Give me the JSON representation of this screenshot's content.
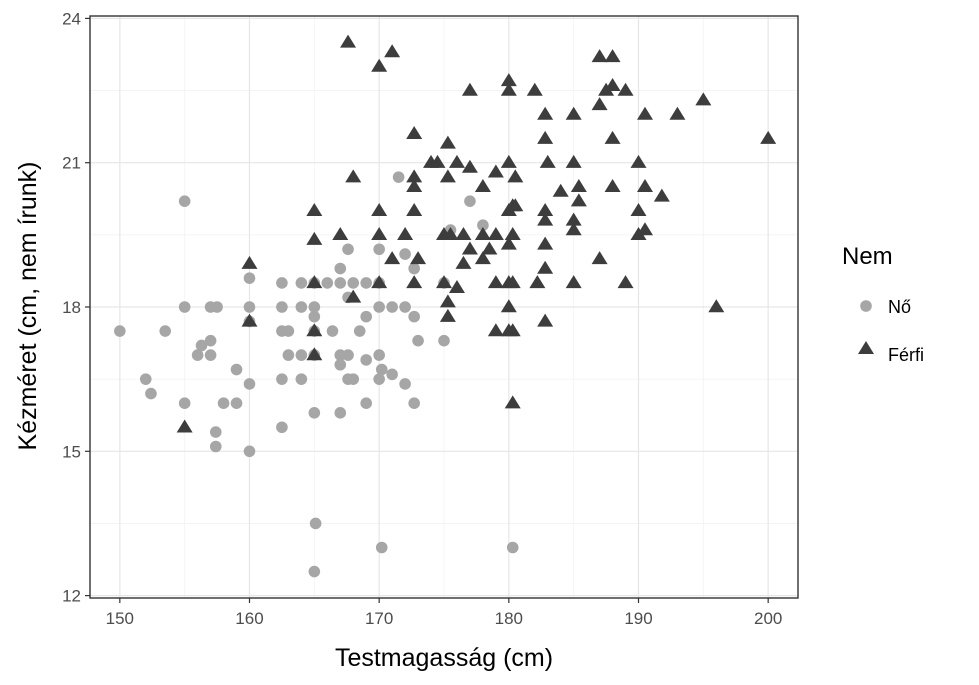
{
  "chart_data": {
    "type": "scatter",
    "title": "",
    "xlabel": "Testmagasság (cm)",
    "ylabel": "Kézméret (cm, nem írunk)",
    "xlim": [
      147.7,
      202.3
    ],
    "ylim": [
      11.95,
      24.05
    ],
    "x_ticks": [
      150,
      160,
      170,
      180,
      190,
      200
    ],
    "y_ticks": [
      12,
      15,
      18,
      21,
      24
    ],
    "grid": true,
    "legend": {
      "title": "Nem",
      "position": "right",
      "entries": [
        {
          "label": "Nő",
          "shape": "circle",
          "color": "#a6a6a6"
        },
        {
          "label": "Férfi",
          "shape": "triangle",
          "color": "#3d3d3d"
        }
      ]
    },
    "series": [
      {
        "name": "Nő",
        "shape": "circle",
        "color": "#a6a6a6",
        "points": [
          [
            150,
            17.5
          ],
          [
            152,
            16.5
          ],
          [
            152.4,
            16.2
          ],
          [
            153.5,
            17.5
          ],
          [
            155,
            20.2
          ],
          [
            155,
            18
          ],
          [
            155,
            16
          ],
          [
            156,
            17
          ],
          [
            156.3,
            17.2
          ],
          [
            157,
            18
          ],
          [
            157,
            17.3
          ],
          [
            157,
            17
          ],
          [
            157.4,
            15.4
          ],
          [
            157.4,
            15.1
          ],
          [
            157.5,
            18
          ],
          [
            158,
            16
          ],
          [
            159,
            16
          ],
          [
            159,
            16.7
          ],
          [
            160,
            18.6
          ],
          [
            160,
            18
          ],
          [
            160,
            17.7
          ],
          [
            160,
            16.4
          ],
          [
            160,
            15
          ],
          [
            162.5,
            18.5
          ],
          [
            162.5,
            18
          ],
          [
            162.5,
            17.5
          ],
          [
            162.5,
            16.5
          ],
          [
            162.5,
            15.5
          ],
          [
            163,
            17.5
          ],
          [
            163,
            17
          ],
          [
            164,
            18.5
          ],
          [
            164,
            18
          ],
          [
            164,
            17
          ],
          [
            164,
            16.5
          ],
          [
            165,
            18.5
          ],
          [
            165,
            18
          ],
          [
            165,
            17.8
          ],
          [
            165,
            17.5
          ],
          [
            165,
            17
          ],
          [
            165,
            15.8
          ],
          [
            165.1,
            13.5
          ],
          [
            165,
            12.5
          ],
          [
            166,
            18.5
          ],
          [
            166.4,
            17.5
          ],
          [
            167,
            18.8
          ],
          [
            167,
            18.5
          ],
          [
            167,
            17
          ],
          [
            167,
            16.8
          ],
          [
            167,
            15.8
          ],
          [
            167.6,
            19.2
          ],
          [
            167.6,
            18.2
          ],
          [
            167.6,
            17
          ],
          [
            167.6,
            16.5
          ],
          [
            168,
            18.5
          ],
          [
            168,
            16.5
          ],
          [
            168.5,
            17.5
          ],
          [
            169,
            18.5
          ],
          [
            169,
            17.8
          ],
          [
            169,
            16.9
          ],
          [
            169,
            16
          ],
          [
            170,
            19.2
          ],
          [
            170,
            18.5
          ],
          [
            170,
            18
          ],
          [
            170,
            17
          ],
          [
            170.2,
            16.7
          ],
          [
            170,
            16.5
          ],
          [
            170.2,
            13
          ],
          [
            171,
            18
          ],
          [
            171,
            16.6
          ],
          [
            171.5,
            20.7
          ],
          [
            172,
            19.1
          ],
          [
            172,
            18
          ],
          [
            172,
            16.4
          ],
          [
            172.7,
            18.8
          ],
          [
            172.7,
            17.8
          ],
          [
            172.7,
            16
          ],
          [
            173,
            17.3
          ],
          [
            175,
            18.5
          ],
          [
            175,
            17.3
          ],
          [
            175.5,
            19.6
          ],
          [
            177,
            20.2
          ],
          [
            178,
            19.7
          ],
          [
            180.3,
            13
          ]
        ]
      },
      {
        "name": "Férfi",
        "shape": "triangle",
        "color": "#3d3d3d",
        "points": [
          [
            155,
            15.5
          ],
          [
            160,
            18.9
          ],
          [
            160,
            17.7
          ],
          [
            165,
            20
          ],
          [
            165,
            19.4
          ],
          [
            165,
            18.5
          ],
          [
            165,
            17.5
          ],
          [
            165,
            17
          ],
          [
            167,
            19.5
          ],
          [
            167.6,
            23.5
          ],
          [
            168,
            20.7
          ],
          [
            168,
            18.2
          ],
          [
            170,
            23
          ],
          [
            170,
            20
          ],
          [
            170,
            19.5
          ],
          [
            170,
            18.5
          ],
          [
            171,
            23.3
          ],
          [
            171,
            19
          ],
          [
            172,
            19.5
          ],
          [
            172.7,
            21.6
          ],
          [
            172.7,
            20.7
          ],
          [
            172.7,
            20.5
          ],
          [
            172.7,
            20
          ],
          [
            172.7,
            18.5
          ],
          [
            173,
            19
          ],
          [
            174,
            21
          ],
          [
            174.5,
            21
          ],
          [
            175,
            19.5
          ],
          [
            175,
            18.5
          ],
          [
            175.3,
            21.4
          ],
          [
            175.3,
            20.7
          ],
          [
            175.5,
            19.5
          ],
          [
            175.3,
            18.1
          ],
          [
            175.3,
            17.8
          ],
          [
            176,
            21
          ],
          [
            176,
            18.4
          ],
          [
            176.5,
            19.5
          ],
          [
            176.5,
            18.9
          ],
          [
            177,
            22.5
          ],
          [
            177,
            20.9
          ],
          [
            177,
            19.2
          ],
          [
            178,
            20.5
          ],
          [
            178,
            19.5
          ],
          [
            178,
            19
          ],
          [
            178.5,
            19.2
          ],
          [
            179,
            20.8
          ],
          [
            179,
            19.5
          ],
          [
            179,
            18.5
          ],
          [
            179,
            17.5
          ],
          [
            180,
            22.7
          ],
          [
            180,
            22.5
          ],
          [
            180,
            21
          ],
          [
            180,
            20
          ],
          [
            180,
            19.3
          ],
          [
            180,
            18.5
          ],
          [
            180,
            18
          ],
          [
            180,
            17.5
          ],
          [
            180.3,
            20.1
          ],
          [
            180.3,
            19.5
          ],
          [
            180.3,
            18.5
          ],
          [
            180.3,
            17.5
          ],
          [
            180.3,
            16
          ],
          [
            180.5,
            20.7
          ],
          [
            180.5,
            20.1
          ],
          [
            182,
            22.5
          ],
          [
            182.2,
            18.5
          ],
          [
            182.8,
            22
          ],
          [
            182.8,
            21.5
          ],
          [
            182.8,
            20
          ],
          [
            182.8,
            19.8
          ],
          [
            182.8,
            19.3
          ],
          [
            182.8,
            18.8
          ],
          [
            182.8,
            17.7
          ],
          [
            183,
            21
          ],
          [
            184,
            20.4
          ],
          [
            185,
            22
          ],
          [
            185,
            21
          ],
          [
            185,
            19.8
          ],
          [
            185,
            19.6
          ],
          [
            185,
            18.5
          ],
          [
            185.4,
            20.5
          ],
          [
            185.4,
            20.2
          ],
          [
            187,
            23.2
          ],
          [
            187,
            22.2
          ],
          [
            187,
            19
          ],
          [
            187.5,
            22.5
          ],
          [
            188,
            23.2
          ],
          [
            188,
            22.6
          ],
          [
            188,
            21.5
          ],
          [
            188,
            20.5
          ],
          [
            189,
            22.5
          ],
          [
            189,
            18.5
          ],
          [
            190,
            21
          ],
          [
            190,
            20
          ],
          [
            190,
            19.5
          ],
          [
            190.5,
            22
          ],
          [
            190.5,
            20.5
          ],
          [
            190.5,
            19.6
          ],
          [
            191.8,
            20.3
          ],
          [
            193,
            22
          ],
          [
            195,
            22.3
          ],
          [
            196,
            18
          ],
          [
            200,
            21.5
          ]
        ]
      }
    ]
  }
}
